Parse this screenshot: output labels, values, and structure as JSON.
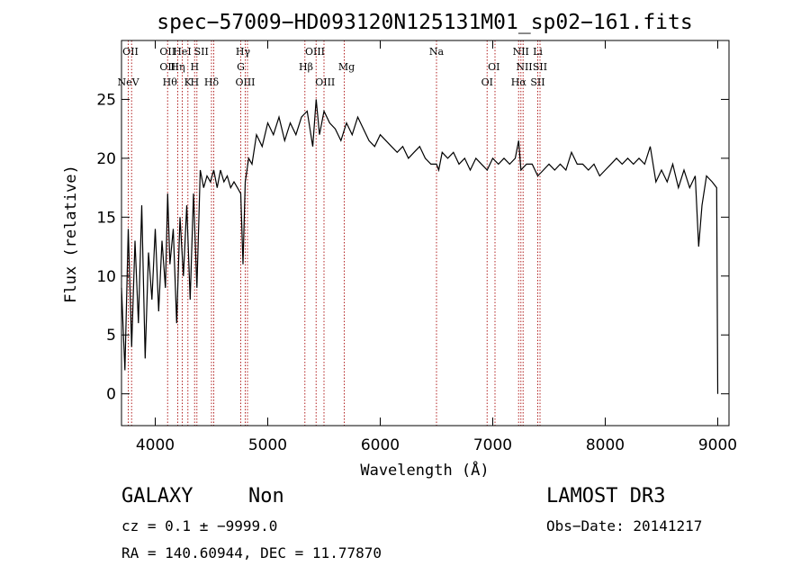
{
  "chart_data": {
    "type": "line",
    "title": "spec−57009−HD093120N125131M01_sp02−161.fits",
    "xlabel": "Wavelength (Å)",
    "ylabel": "Flux (relative)",
    "xlim": [
      3700,
      9100
    ],
    "ylim": [
      -2.7,
      30
    ],
    "x_ticks": [
      4000,
      5000,
      6000,
      7000,
      8000,
      9000
    ],
    "y_ticks": [
      0,
      5,
      10,
      15,
      20,
      25
    ],
    "grid": false,
    "series": [
      {
        "x": [
          3700,
          3730,
          3760,
          3790,
          3820,
          3850,
          3880,
          3910,
          3940,
          3970,
          4000,
          4030,
          4060,
          4090,
          4110,
          4130,
          4160,
          4190,
          4220,
          4250,
          4280,
          4310,
          4340,
          4370,
          4400,
          4430,
          4460,
          4490,
          4520,
          4550,
          4580,
          4610,
          4640,
          4670,
          4700,
          4730,
          4760,
          4780,
          4800,
          4830,
          4860,
          4900,
          4950,
          5000,
          5050,
          5100,
          5150,
          5200,
          5250,
          5300,
          5350,
          5400,
          5430,
          5460,
          5500,
          5550,
          5600,
          5650,
          5700,
          5750,
          5800,
          5850,
          5900,
          5950,
          6000,
          6050,
          6100,
          6150,
          6200,
          6250,
          6300,
          6350,
          6400,
          6450,
          6500,
          6520,
          6550,
          6600,
          6650,
          6700,
          6750,
          6800,
          6850,
          6900,
          6950,
          7000,
          7050,
          7100,
          7150,
          7200,
          7230,
          7250,
          7300,
          7350,
          7400,
          7450,
          7500,
          7550,
          7600,
          7650,
          7700,
          7750,
          7800,
          7850,
          7900,
          7950,
          8000,
          8050,
          8100,
          8150,
          8200,
          8250,
          8300,
          8350,
          8400,
          8450,
          8500,
          8550,
          8600,
          8650,
          8700,
          8750,
          8800,
          8830,
          8860,
          8900,
          8950,
          8990,
          9000
        ],
        "y": [
          9,
          2,
          14,
          4,
          13,
          6,
          16,
          3,
          12,
          8,
          14,
          7,
          13,
          9,
          17,
          11,
          14,
          6,
          15,
          10,
          16,
          8,
          17,
          9,
          19,
          17.5,
          18.5,
          18,
          19,
          17.5,
          19,
          18,
          18.5,
          17.5,
          18,
          17.5,
          17,
          11,
          18,
          20,
          19.5,
          22,
          21,
          23,
          22,
          23.5,
          21.5,
          23,
          22,
          23.5,
          24,
          21,
          25,
          22,
          24,
          23,
          22.5,
          21.5,
          23,
          22,
          23.5,
          22.5,
          21.5,
          21,
          22,
          21.5,
          21,
          20.5,
          21,
          20,
          20.5,
          21,
          20,
          19.5,
          19.5,
          19,
          20.5,
          20,
          20.5,
          19.5,
          20,
          19,
          20,
          19.5,
          19,
          20,
          19.5,
          20,
          19.5,
          20,
          21.5,
          19,
          19.5,
          19.5,
          18.5,
          19,
          19.5,
          19,
          19.5,
          19,
          20.5,
          19.5,
          19.5,
          19,
          19.5,
          18.5,
          19,
          19.5,
          20,
          19.5,
          20,
          19.5,
          20,
          19.5,
          21,
          18,
          19,
          18,
          19.5,
          17.5,
          19,
          17.5,
          18.5,
          12.5,
          16,
          18.5,
          18,
          17.5,
          0
        ]
      }
    ],
    "spectral_lines": [
      {
        "label": "NeV",
        "x": 3760,
        "row": 4
      },
      {
        "label": "OII",
        "x": 3780,
        "row": 1
      },
      {
        "label": "OII",
        "x": 4110,
        "row": 1
      },
      {
        "label": "OII",
        "x": 4110,
        "row": 2
      },
      {
        "label": "Hθ",
        "x": 4130,
        "row": 3
      },
      {
        "label": "Hη",
        "x": 4200,
        "row": 2
      },
      {
        "label": "HeI",
        "x": 4240,
        "row": 1
      },
      {
        "label": "K",
        "x": 4290,
        "row": 3
      },
      {
        "label": "H",
        "x": 4350,
        "row": 2
      },
      {
        "label": "H",
        "x": 4350,
        "row": 3
      },
      {
        "label": "SII",
        "x": 4410,
        "row": 1
      },
      {
        "label": "Hδ",
        "x": 4500,
        "row": 3
      },
      {
        "label": "Hγ",
        "x": 4780,
        "row": 1
      },
      {
        "label": "G",
        "x": 4760,
        "row": 2
      },
      {
        "label": "OIII",
        "x": 4800,
        "row": 3
      },
      {
        "label": "Hβ",
        "x": 5340,
        "row": 2
      },
      {
        "label": "OIII",
        "x": 5420,
        "row": 1
      },
      {
        "label": "OIII",
        "x": 5510,
        "row": 3
      },
      {
        "label": "Mg",
        "x": 5700,
        "row": 2
      },
      {
        "label": "Na",
        "x": 6500,
        "row": 1
      },
      {
        "label": "OI",
        "x": 6950,
        "row": 3
      },
      {
        "label": "OI",
        "x": 7010,
        "row": 2
      },
      {
        "label": "NII",
        "x": 7250,
        "row": 1
      },
      {
        "label": "NII",
        "x": 7280,
        "row": 2
      },
      {
        "label": "Hα",
        "x": 7230,
        "row": 3
      },
      {
        "label": "SII",
        "x": 7420,
        "row": 2
      },
      {
        "label": "SII",
        "x": 7400,
        "row": 3
      },
      {
        "label": "Li",
        "x": 7400,
        "row": 1
      }
    ],
    "line_markers": [
      3760,
      3790,
      4110,
      4200,
      4240,
      4290,
      4350,
      4370,
      4500,
      4520,
      4760,
      4800,
      4820,
      5330,
      5430,
      5500,
      5680,
      6500,
      6950,
      7020,
      7230,
      7250,
      7270,
      7400,
      7420
    ],
    "line_color": "#b22222"
  },
  "footer": {
    "object_class": "GALAXY",
    "subclass": "Non",
    "survey": "LAMOST DR3",
    "cz": "cz = 0.1 ± −9999.0",
    "obs_date": "Obs−Date: 20141217",
    "coords": "RA = 140.60944, DEC =  11.77870"
  }
}
